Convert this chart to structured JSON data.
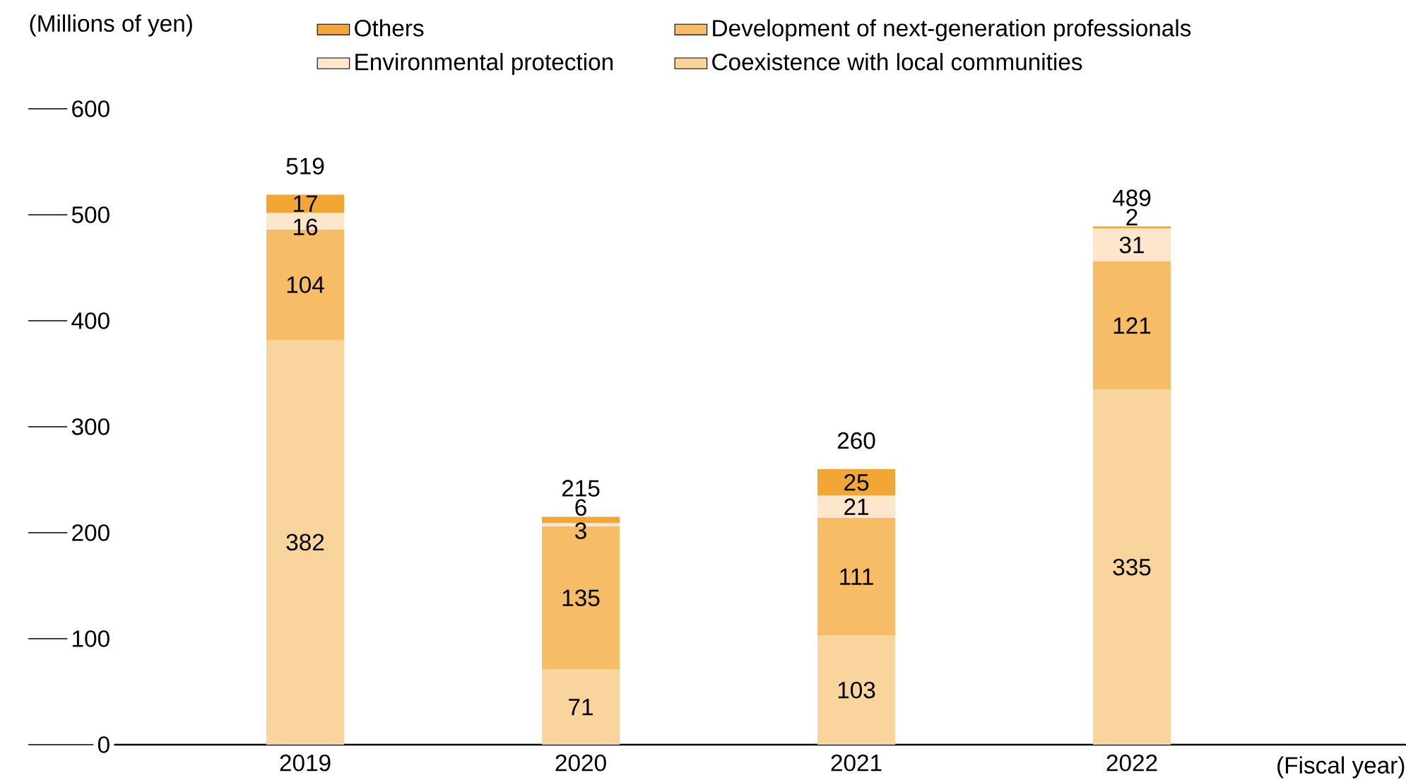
{
  "chart_data": {
    "type": "bar",
    "stacked": true,
    "ylabel": "(Millions of yen)",
    "xlabel": "(Fiscal year)",
    "categories": [
      "2019",
      "2020",
      "2021",
      "2022"
    ],
    "series": [
      {
        "name": "Coexistence with local communities",
        "color": "#f9d49c",
        "values": [
          382,
          71,
          103,
          335
        ]
      },
      {
        "name": "Development of next-generation professionals",
        "color": "#f6bc66",
        "values": [
          104,
          135,
          111,
          121
        ]
      },
      {
        "name": "Environmental protection",
        "color": "#fde6cc",
        "values": [
          16,
          3,
          21,
          31
        ]
      },
      {
        "name": "Others",
        "color": "#f2a636",
        "values": [
          17,
          6,
          25,
          2
        ]
      }
    ],
    "ylim": [
      0,
      600
    ],
    "yticks": [
      0,
      100,
      200,
      300,
      400,
      500,
      600
    ],
    "data_labels": true,
    "totals": [
      "519",
      "215",
      "260",
      "489"
    ],
    "legend": "top",
    "grid": false
  }
}
